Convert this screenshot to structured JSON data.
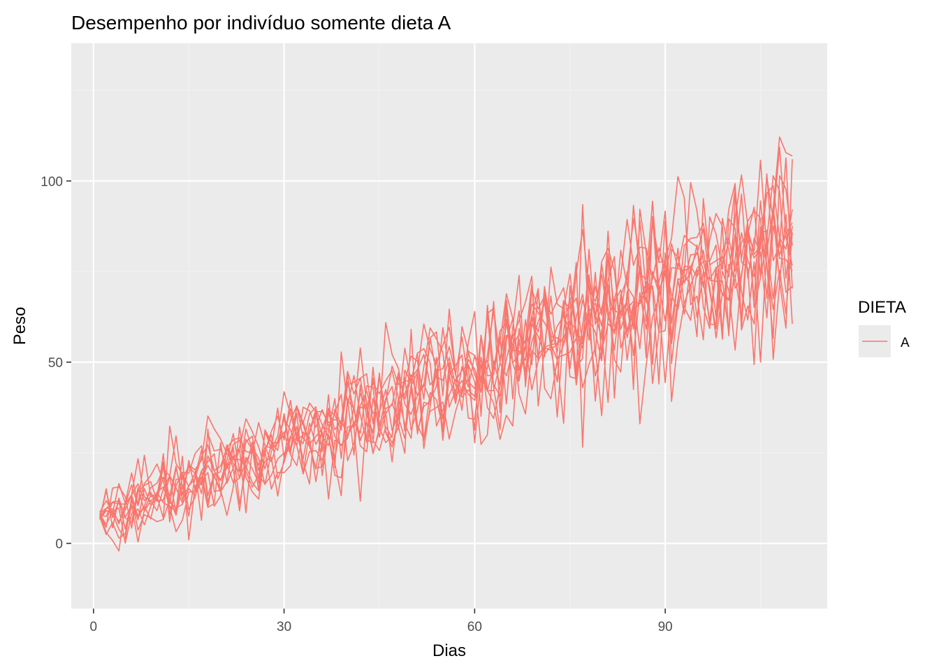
{
  "chart_data": {
    "type": "line",
    "title": "Desempenho por indivíduo somente dieta A",
    "xlabel": "Dias",
    "ylabel": "Peso",
    "xlim": [
      -3.5,
      115.5
    ],
    "ylim": [
      -18,
      138
    ],
    "x_ticks": [
      0,
      30,
      60,
      90
    ],
    "x_tick_labels": [
      "0",
      "30",
      "60",
      "90"
    ],
    "y_ticks": [
      0,
      50,
      100
    ],
    "y_tick_labels": [
      "0",
      "50",
      "100"
    ],
    "x_range_days": [
      1,
      110
    ],
    "grid": true,
    "legend": {
      "title": "DIETA",
      "placement": "right",
      "entries": [
        {
          "label": "A",
          "color": "#F8766D"
        }
      ]
    },
    "series_color": "#F8766D",
    "n_individuals": 12,
    "trend": {
      "intercept": 7.5,
      "slope": 0.72
    },
    "noise_sd_range": [
      4,
      13
    ],
    "colors": {
      "panel": "#EBEBEB",
      "grid_major": "#FFFFFF",
      "grid_minor": "#F2F2F2",
      "line": "#F8766D"
    }
  }
}
